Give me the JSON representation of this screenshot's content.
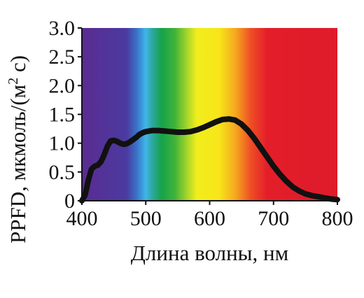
{
  "chart_data": {
    "type": "line",
    "title": "",
    "xlabel": "Длина волны, нм",
    "ylabel_main": "PPFD, мкмоль/(м",
    "ylabel_sup": "2",
    "ylabel_tail": " с)",
    "xlim": [
      400,
      800
    ],
    "ylim": [
      0,
      3.0
    ],
    "x_ticks": [
      400,
      500,
      600,
      700,
      800
    ],
    "x_tick_labels": [
      "400",
      "500",
      "600",
      "700",
      "800"
    ],
    "y_ticks": [
      0,
      0.5,
      1.0,
      1.5,
      2.0,
      2.5,
      3.0
    ],
    "y_tick_labels": [
      "0",
      "0.5",
      "1.0",
      "1.5",
      "2.0",
      "2.5",
      "3.0"
    ],
    "grid": false,
    "background": "visible-spectrum gradient",
    "spectrum_colors": [
      {
        "wavelength": 400,
        "color": "#5a2c91"
      },
      {
        "wavelength": 470,
        "color": "#4b3aa0"
      },
      {
        "wavelength": 485,
        "color": "#3a6fc6"
      },
      {
        "wavelength": 500,
        "color": "#3fb6e8"
      },
      {
        "wavelength": 510,
        "color": "#2fa7a0"
      },
      {
        "wavelength": 525,
        "color": "#16a34a"
      },
      {
        "wavelength": 545,
        "color": "#3fb23a"
      },
      {
        "wavelength": 565,
        "color": "#a7d62a"
      },
      {
        "wavelength": 580,
        "color": "#f2ee1c"
      },
      {
        "wavelength": 615,
        "color": "#f7e51a"
      },
      {
        "wavelength": 640,
        "color": "#f6a91e"
      },
      {
        "wavelength": 665,
        "color": "#ee4d25"
      },
      {
        "wavelength": 690,
        "color": "#e31e2a"
      },
      {
        "wavelength": 800,
        "color": "#df1b2a"
      }
    ],
    "curve_color": "#111111",
    "series": [
      {
        "x": [
          400,
          405,
          410,
          415,
          420,
          425,
          430,
          435,
          440,
          445,
          450,
          455,
          460,
          465,
          470,
          475,
          480,
          485,
          490,
          495,
          500,
          510,
          520,
          530,
          540,
          550,
          560,
          570,
          580,
          590,
          600,
          610,
          620,
          630,
          640,
          650,
          660,
          670,
          680,
          690,
          700,
          710,
          720,
          730,
          740,
          750,
          760,
          770,
          780,
          790,
          800
        ],
        "y": [
          0.0,
          0.1,
          0.35,
          0.55,
          0.6,
          0.62,
          0.68,
          0.8,
          0.95,
          1.04,
          1.05,
          1.03,
          1.0,
          0.98,
          0.99,
          1.02,
          1.06,
          1.1,
          1.15,
          1.18,
          1.2,
          1.22,
          1.22,
          1.21,
          1.2,
          1.19,
          1.19,
          1.2,
          1.23,
          1.27,
          1.32,
          1.37,
          1.41,
          1.42,
          1.4,
          1.33,
          1.22,
          1.08,
          0.92,
          0.76,
          0.6,
          0.46,
          0.34,
          0.24,
          0.17,
          0.12,
          0.09,
          0.07,
          0.05,
          0.03,
          0.02
        ]
      }
    ]
  }
}
